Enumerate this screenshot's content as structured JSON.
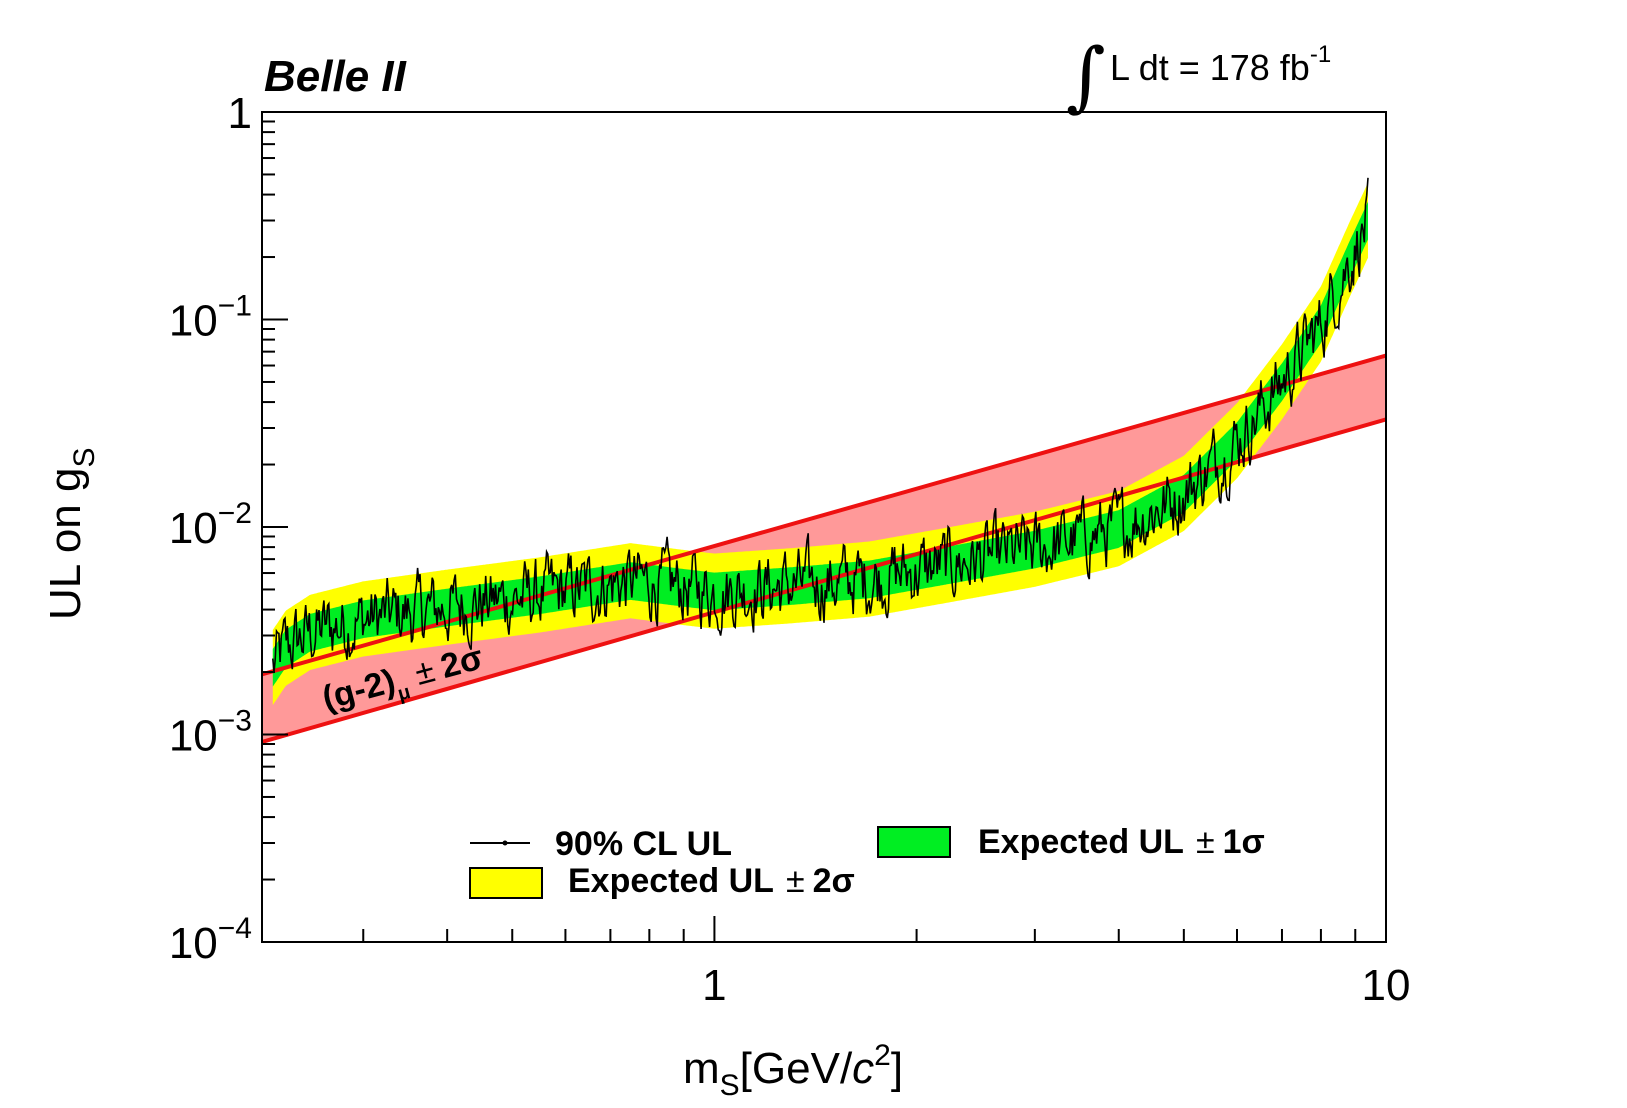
{
  "experiment": "Belle II",
  "luminosity": {
    "integral_symbol": "∫",
    "prefix": "L dt = 178 fb",
    "exponent": "-1"
  },
  "colors": {
    "theory_band": "#ff9999",
    "theory_line": "#ee1111",
    "one_sigma": "#00ee22",
    "two_sigma": "#ffff00",
    "observed": "#000000"
  },
  "chart_data": {
    "type": "line",
    "title": "",
    "xlabel": {
      "base": "m",
      "sub": "S",
      "unit_prefix": "[GeV/",
      "unit_var": "c",
      "unit_sup": "2",
      "unit_suffix": "]"
    },
    "ylabel": {
      "base": "UL on g",
      "sub": "S"
    },
    "xscale": "log",
    "yscale": "log",
    "xlim": [
      0.212,
      10.0
    ],
    "ylim": [
      0.0001,
      1.0
    ],
    "x_ticks": [
      {
        "value": 1,
        "label": "1"
      },
      {
        "value": 10,
        "label": "10"
      }
    ],
    "y_ticks": [
      {
        "value": 1,
        "base": "1",
        "exp": ""
      },
      {
        "value": 0.1,
        "base": "10",
        "exp": "−1"
      },
      {
        "value": 0.01,
        "base": "10",
        "exp": "−2"
      },
      {
        "value": 0.001,
        "base": "10",
        "exp": "−3"
      },
      {
        "value": 0.0001,
        "base": "10",
        "exp": "−4"
      }
    ],
    "theory_band": {
      "label_main": "(g-2)",
      "label_sub": "μ",
      "label_pm": "±",
      "label_sig": "2σ",
      "upper": {
        "x": [
          0.212,
          10.0
        ],
        "y": [
          0.00195,
          0.067
        ]
      },
      "lower": {
        "x": [
          0.212,
          10.0
        ],
        "y": [
          0.00092,
          0.033
        ]
      }
    },
    "expected_median": {
      "x": [
        0.22,
        0.23,
        0.25,
        0.3,
        0.4,
        0.55,
        0.75,
        0.9,
        1.0,
        1.3,
        1.7,
        2.2,
        3.0,
        4.0,
        5.0,
        6.0,
        7.0,
        8.0,
        8.8,
        9.4
      ],
      "y": [
        0.0021,
        0.0026,
        0.0031,
        0.0036,
        0.0041,
        0.0047,
        0.0055,
        0.0051,
        0.0049,
        0.0052,
        0.0056,
        0.0065,
        0.0078,
        0.0098,
        0.0145,
        0.026,
        0.05,
        0.095,
        0.19,
        0.3
      ]
    },
    "band_1sigma_factor": [
      0.81,
      1.23
    ],
    "band_2sigma_factor": [
      0.66,
      1.52
    ],
    "observed_noise_amplitude": 0.14,
    "series": [
      {
        "name": "90% CL UL"
      },
      {
        "name": "Expected UL ± 1σ"
      },
      {
        "name": "Expected UL ± 2σ"
      }
    ],
    "legend": {
      "position": "bottom-center",
      "entries": [
        {
          "key": "observed",
          "text": "90% CL UL"
        },
        {
          "key": "one_sigma",
          "text": "Expected UL",
          "pm": "±",
          "sig": "1σ"
        },
        {
          "key": "two_sigma",
          "text": "Expected UL",
          "pm": "±",
          "sig": "2σ"
        }
      ]
    }
  }
}
